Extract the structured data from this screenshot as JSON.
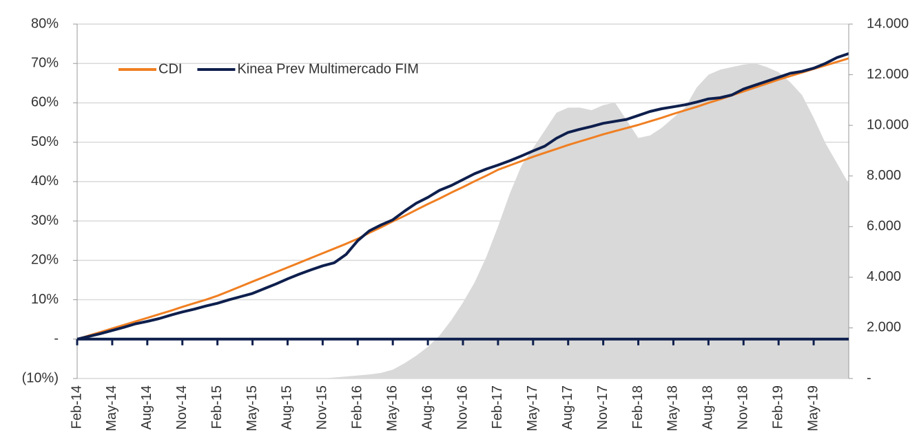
{
  "chart_data": {
    "type": "line",
    "categories": [
      "Feb-14",
      null,
      null,
      "May-14",
      null,
      null,
      "Aug-14",
      null,
      null,
      "Nov-14",
      null,
      null,
      "Feb-15",
      null,
      null,
      "May-15",
      null,
      null,
      "Aug-15",
      null,
      null,
      "Nov-15",
      null,
      null,
      "Feb-16",
      null,
      null,
      "May-16",
      null,
      null,
      "Aug-16",
      null,
      null,
      "Nov-16",
      null,
      null,
      "Feb-17",
      null,
      null,
      "May-17",
      null,
      null,
      "Aug-17",
      null,
      null,
      "Nov-17",
      null,
      null,
      "Feb-18",
      null,
      null,
      "May-18",
      null,
      null,
      "Aug-18",
      null,
      null,
      "Nov-18",
      null,
      null,
      "Feb-19",
      null,
      null,
      "May-19",
      null,
      null,
      null
    ],
    "series": [
      {
        "name": null,
        "type": "area",
        "axis": "y2",
        "color": "#d9d9d9",
        "values": [
          0,
          0,
          0,
          0,
          0,
          0,
          0,
          0,
          0,
          0,
          0,
          0,
          0,
          0,
          0,
          0,
          0,
          0,
          0,
          0,
          0,
          0,
          40,
          80,
          120,
          160,
          220,
          350,
          600,
          900,
          1250,
          1700,
          2300,
          3000,
          3800,
          4800,
          6000,
          7300,
          8400,
          9100,
          9800,
          10500,
          10700,
          10700,
          10600,
          10800,
          10900,
          10200,
          9500,
          9600,
          9900,
          10300,
          10700,
          11500,
          12000,
          12200,
          12300,
          12400,
          12450,
          12300,
          12100,
          11700,
          11200,
          10300,
          9300,
          8500,
          7700
        ]
      },
      {
        "name": "CDI",
        "type": "line",
        "color": "#f07f22",
        "values": [
          0,
          0.9,
          1.8,
          2.7,
          3.6,
          4.5,
          5.4,
          6.3,
          7.2,
          8.2,
          9.1,
          10.0,
          11.0,
          12.2,
          13.4,
          14.6,
          15.8,
          17.0,
          18.2,
          19.4,
          20.6,
          21.8,
          23.0,
          24.2,
          25.5,
          27.0,
          28.4,
          29.9,
          31.3,
          32.8,
          34.3,
          35.7,
          37.2,
          38.6,
          40.1,
          41.5,
          43.0,
          44.1,
          45.2,
          46.3,
          47.3,
          48.3,
          49.3,
          50.2,
          51.1,
          52.0,
          52.8,
          53.6,
          54.4,
          55.3,
          56.2,
          57.2,
          58.1,
          59.0,
          60.0,
          60.9,
          61.9,
          62.9,
          63.9,
          64.9,
          65.9,
          66.8,
          67.7,
          68.6,
          69.5,
          70.4,
          71.3
        ]
      },
      {
        "name": "Kinea Prev Multimercado FIM",
        "type": "line",
        "color": "#0e1f4d",
        "values": [
          0,
          0.7,
          1.4,
          2.2,
          3.0,
          3.9,
          4.5,
          5.2,
          6.1,
          6.9,
          7.6,
          8.4,
          9.1,
          10.0,
          10.8,
          11.6,
          12.8,
          14.0,
          15.3,
          16.5,
          17.6,
          18.6,
          19.4,
          21.5,
          25.0,
          27.5,
          29.0,
          30.3,
          32.5,
          34.5,
          36.0,
          37.8,
          39.0,
          40.5,
          42.0,
          43.2,
          44.2,
          45.3,
          46.5,
          47.8,
          49.0,
          51.0,
          52.5,
          53.3,
          54.0,
          54.8,
          55.3,
          55.8,
          56.8,
          57.8,
          58.5,
          59.0,
          59.5,
          60.2,
          61.0,
          61.3,
          62.0,
          63.5,
          64.5,
          65.5,
          66.5,
          67.5,
          68.0,
          68.8,
          70.0,
          71.5,
          72.5
        ]
      }
    ],
    "ylim": [
      -10,
      80
    ],
    "yticks": [
      {
        "value": -10,
        "label": "(10%)"
      },
      {
        "value": 0,
        "label": "-"
      },
      {
        "value": 10,
        "label": "10%"
      },
      {
        "value": 20,
        "label": "20%"
      },
      {
        "value": 30,
        "label": "30%"
      },
      {
        "value": 40,
        "label": "40%"
      },
      {
        "value": 50,
        "label": "50%"
      },
      {
        "value": 60,
        "label": "60%"
      },
      {
        "value": 70,
        "label": "70%"
      },
      {
        "value": 80,
        "label": "80%"
      }
    ],
    "y2lim": [
      0,
      14000
    ],
    "y2ticks": [
      {
        "value": 0,
        "label": "-"
      },
      {
        "value": 2000,
        "label": "2.000"
      },
      {
        "value": 4000,
        "label": "4.000"
      },
      {
        "value": 6000,
        "label": "6.000"
      },
      {
        "value": 8000,
        "label": "8.000"
      },
      {
        "value": 10000,
        "label": "10.000"
      },
      {
        "value": 12000,
        "label": "12.000"
      },
      {
        "value": 14000,
        "label": "14.000"
      }
    ],
    "grid": true,
    "legend": "top-left"
  }
}
